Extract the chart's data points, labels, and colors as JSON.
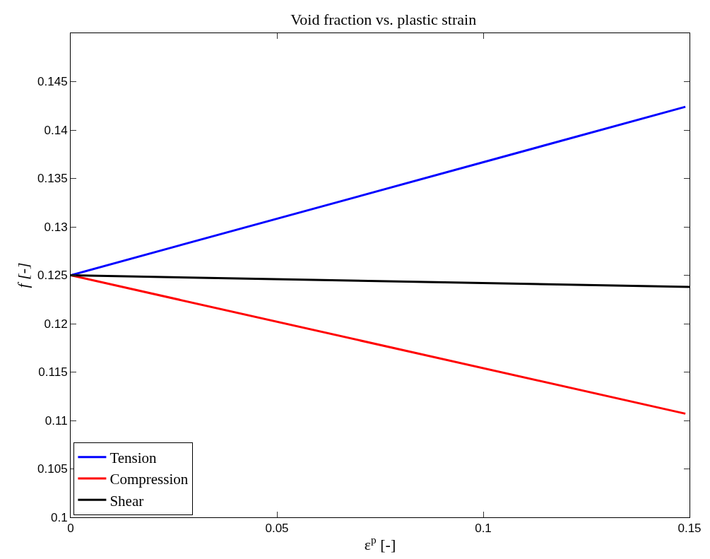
{
  "chart_data": {
    "type": "line",
    "title": "Void fraction vs. plastic strain",
    "xlabel": "ε$^{p}$ [-]",
    "ylabel": "f [-]",
    "xlim": [
      0,
      0.15
    ],
    "xticks": [
      0,
      0.05,
      0.1,
      0.15
    ],
    "ylim": [
      0.1,
      0.15
    ],
    "yticks": [
      0.1,
      0.105,
      0.11,
      0.115,
      0.12,
      0.125,
      0.13,
      0.135,
      0.14,
      0.145,
      {
        "value": 0.15,
        "label": null
      }
    ],
    "grid": false,
    "legend": "bottom left",
    "marker": "none",
    "line_style": "solid",
    "series": [
      {
        "name": "Tension",
        "color": "#0000ff",
        "x": [
          0,
          0.149
        ],
        "values": [
          0.125,
          0.1424
        ]
      },
      {
        "name": "Compression",
        "color": "#ff0000",
        "x": [
          0,
          0.149
        ],
        "values": [
          0.125,
          0.1107
        ]
      },
      {
        "name": "Shear",
        "color": "#000000",
        "x": [
          0,
          0.15
        ],
        "values": [
          0.125,
          0.1238
        ]
      }
    ]
  }
}
